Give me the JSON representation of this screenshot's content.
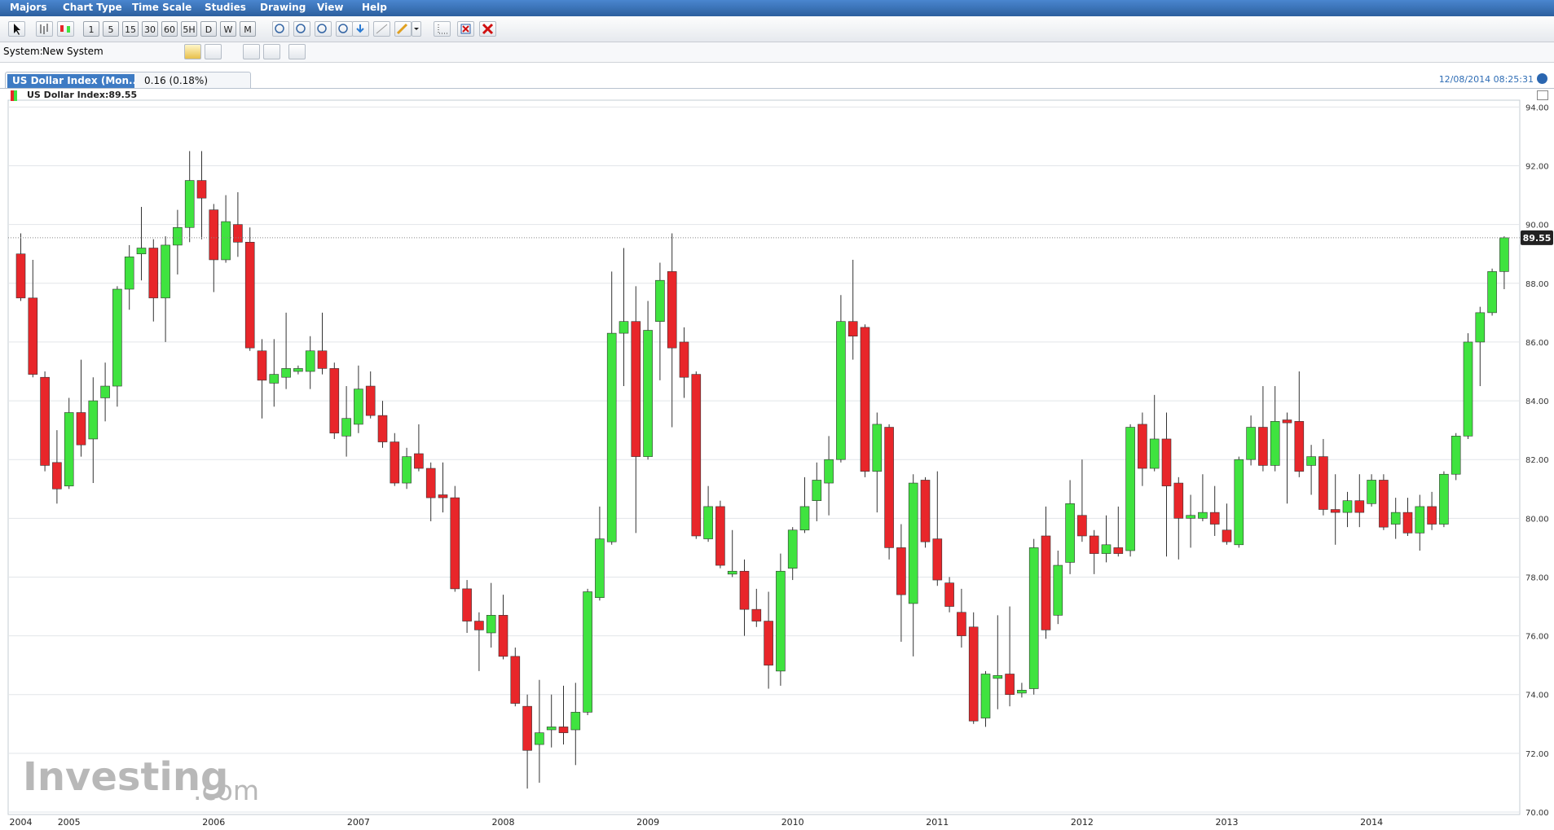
{
  "menu": [
    "Majors",
    "Chart Type",
    "Time Scale",
    "Studies",
    "Drawing",
    "View",
    "Help"
  ],
  "toolbar": {
    "intervals": [
      "1",
      "5",
      "15",
      "30",
      "60",
      "5H",
      "D",
      "W",
      "M"
    ]
  },
  "system": {
    "label": "System:",
    "value": "New System"
  },
  "tab": {
    "title": "US Dollar Index (Mon...",
    "change": "0.16 (0.18%)"
  },
  "timestamp": "12/08/2014 08:25:31",
  "legend": "US Dollar Index:89.55",
  "watermark": {
    "brand": "Investing",
    "suffix": ".com"
  },
  "chart_data": {
    "type": "candlestick",
    "categories": [
      "2004",
      null,
      null,
      null,
      "2005",
      null,
      null,
      null,
      null,
      null,
      null,
      null,
      null,
      null,
      null,
      null,
      "2006",
      null,
      null,
      null,
      null,
      null,
      null,
      null,
      null,
      null,
      null,
      null,
      "2007",
      null,
      null,
      null,
      null,
      null,
      null,
      null,
      null,
      null,
      null,
      null,
      "2008",
      null,
      null,
      null,
      null,
      null,
      null,
      null,
      null,
      null,
      null,
      null,
      "2009",
      null,
      null,
      null,
      null,
      null,
      null,
      null,
      null,
      null,
      null,
      null,
      "2010",
      null,
      null,
      null,
      null,
      null,
      null,
      null,
      null,
      null,
      null,
      null,
      "2011",
      null,
      null,
      null,
      null,
      null,
      null,
      null,
      null,
      null,
      null,
      null,
      "2012",
      null,
      null,
      null,
      null,
      null,
      null,
      null,
      null,
      null,
      null,
      null,
      "2013",
      null,
      null,
      null,
      null,
      null,
      null,
      null,
      null,
      null,
      null,
      null,
      "2014",
      null,
      null,
      null,
      null,
      null,
      null,
      null,
      null,
      null,
      null,
      null
    ],
    "series": [
      {
        "up_color": "#3fe33f",
        "down_color": "#e8262a",
        "open": [
          89.0,
          87.5,
          84.8,
          81.9,
          81.1,
          83.6,
          82.7,
          84.1,
          84.5,
          87.8,
          89.0,
          89.2,
          87.5,
          89.3,
          89.9,
          91.5,
          90.5,
          88.8,
          90.0,
          89.4,
          85.7,
          84.6,
          84.8,
          85.0,
          85.0,
          85.7,
          85.1,
          82.8,
          83.2,
          84.5,
          83.5,
          82.6,
          81.2,
          82.2,
          81.7,
          80.8,
          80.7,
          77.6,
          76.5,
          76.1,
          76.7,
          75.3,
          73.6,
          72.3,
          72.8,
          72.9,
          72.8,
          73.4,
          77.3,
          79.2,
          86.3,
          86.7,
          82.1,
          86.7,
          88.4,
          86.0,
          84.9,
          79.3,
          80.4,
          78.1,
          78.2,
          76.9,
          76.5,
          74.8,
          78.3,
          79.6,
          80.6,
          81.2,
          82.0,
          86.7,
          86.5,
          81.6,
          83.1,
          79.0,
          77.1,
          81.3,
          79.3,
          77.8,
          76.8,
          76.3,
          73.2,
          74.55,
          74.7,
          74.05,
          74.2,
          79.4,
          76.7,
          78.5,
          80.1,
          79.4,
          78.8,
          79.0,
          78.9,
          83.2,
          81.7,
          82.7,
          81.2,
          80.0,
          80.0,
          80.2,
          79.6,
          79.1,
          82.0,
          83.1,
          81.8,
          83.35,
          83.3,
          81.8,
          82.1,
          80.3,
          80.2,
          80.6,
          80.5,
          81.3,
          79.8,
          80.2,
          79.5,
          80.4,
          79.8,
          81.5,
          82.8,
          86.0,
          87.0,
          88.4
        ],
        "high": [
          89.7,
          88.8,
          85.0,
          83.0,
          84.1,
          85.4,
          84.8,
          85.3,
          87.9,
          89.3,
          90.6,
          89.5,
          89.6,
          90.5,
          92.5,
          92.5,
          90.7,
          91.0,
          91.1,
          89.9,
          86.1,
          86.1,
          87.0,
          85.2,
          86.2,
          87.0,
          85.3,
          84.5,
          85.2,
          85.0,
          84.0,
          82.9,
          82.4,
          83.2,
          81.9,
          81.9,
          81.1,
          77.9,
          76.8,
          77.8,
          77.4,
          75.6,
          74.0,
          74.5,
          74.0,
          74.3,
          74.4,
          77.6,
          80.4,
          88.4,
          89.2,
          87.9,
          87.4,
          88.7,
          89.7,
          86.5,
          85.0,
          81.1,
          80.6,
          79.6,
          78.6,
          77.6,
          77.5,
          78.8,
          79.7,
          81.4,
          81.9,
          82.8,
          87.6,
          88.8,
          86.6,
          83.6,
          83.2,
          79.8,
          81.5,
          81.4,
          81.6,
          78.0,
          77.6,
          76.8,
          74.8,
          76.7,
          77.0,
          74.4,
          79.3,
          80.4,
          78.9,
          81.3,
          82.0,
          79.6,
          80.1,
          80.4,
          83.2,
          83.6,
          84.2,
          83.6,
          81.4,
          80.8,
          81.5,
          81.1,
          80.5,
          82.1,
          83.5,
          84.5,
          84.5,
          83.6,
          85.0,
          82.5,
          82.7,
          81.5,
          80.9,
          81.5,
          81.5,
          81.5,
          80.7,
          80.7,
          80.8,
          80.9,
          81.6,
          82.9,
          86.3,
          87.2,
          88.5,
          89.6
        ],
        "low": [
          87.4,
          84.8,
          81.6,
          80.5,
          81.0,
          82.1,
          81.2,
          83.3,
          83.8,
          87.1,
          88.1,
          86.7,
          86.0,
          88.3,
          89.4,
          89.5,
          87.7,
          88.7,
          88.9,
          85.7,
          83.4,
          83.8,
          84.4,
          84.9,
          84.4,
          84.9,
          82.7,
          82.1,
          82.9,
          83.4,
          82.4,
          81.1,
          81.0,
          81.6,
          79.9,
          80.2,
          77.5,
          76.1,
          74.8,
          75.6,
          75.2,
          73.6,
          70.8,
          71.0,
          72.2,
          72.3,
          71.6,
          73.3,
          77.2,
          79.1,
          84.5,
          79.5,
          82.0,
          84.7,
          83.1,
          84.1,
          79.3,
          79.2,
          78.3,
          78.0,
          76.0,
          76.3,
          74.2,
          74.3,
          77.9,
          79.5,
          79.9,
          80.1,
          81.9,
          85.4,
          81.4,
          80.2,
          78.6,
          75.8,
          75.3,
          79.0,
          77.7,
          76.8,
          75.6,
          73.0,
          72.9,
          73.5,
          73.6,
          73.9,
          74.0,
          75.9,
          76.4,
          78.1,
          79.2,
          78.1,
          78.5,
          78.7,
          78.7,
          81.1,
          81.6,
          78.7,
          78.6,
          79.0,
          79.9,
          79.4,
          79.1,
          79.0,
          81.8,
          81.6,
          81.6,
          80.5,
          81.4,
          80.8,
          80.1,
          79.1,
          79.7,
          79.7,
          80.4,
          79.6,
          79.3,
          79.4,
          78.9,
          79.6,
          79.7,
          81.3,
          82.7,
          84.5,
          86.9,
          87.8
        ],
        "close": [
          87.5,
          84.9,
          81.8,
          81.0,
          83.6,
          82.5,
          84.0,
          84.5,
          87.8,
          88.9,
          89.2,
          87.5,
          89.3,
          89.9,
          91.5,
          90.9,
          88.8,
          90.1,
          89.4,
          85.8,
          84.7,
          84.9,
          85.1,
          85.1,
          85.7,
          85.1,
          82.9,
          83.4,
          84.4,
          83.5,
          82.6,
          81.2,
          82.1,
          81.7,
          80.7,
          80.7,
          77.6,
          76.5,
          76.2,
          76.7,
          75.3,
          73.7,
          72.1,
          72.7,
          72.9,
          72.7,
          73.4,
          77.5,
          79.3,
          86.3,
          86.7,
          82.1,
          86.4,
          88.1,
          85.8,
          84.8,
          79.4,
          80.4,
          78.4,
          78.2,
          76.9,
          76.5,
          75.0,
          78.2,
          79.6,
          80.4,
          81.3,
          82.0,
          86.7,
          86.2,
          81.6,
          83.2,
          79.0,
          77.4,
          81.2,
          79.2,
          77.9,
          77.0,
          76.0,
          73.1,
          74.7,
          74.65,
          74.0,
          74.15,
          79.0,
          76.2,
          78.4,
          80.5,
          79.4,
          78.8,
          79.1,
          78.8,
          83.1,
          81.7,
          82.7,
          81.1,
          80.0,
          80.1,
          80.2,
          79.8,
          79.2,
          82.0,
          83.1,
          81.8,
          83.3,
          83.25,
          81.6,
          82.1,
          80.3,
          80.2,
          80.6,
          80.2,
          81.3,
          79.7,
          80.2,
          79.5,
          80.4,
          79.8,
          81.5,
          82.8,
          86.0,
          87.0,
          88.4,
          89.55
        ]
      }
    ],
    "last_value": 89.55,
    "ylim": [
      70,
      94
    ],
    "yticks": [
      {
        "value": 70,
        "label": "70.00"
      },
      {
        "value": 72,
        "label": "72.00"
      },
      {
        "value": 74,
        "label": "74.00"
      },
      {
        "value": 76,
        "label": "76.00"
      },
      {
        "value": 78,
        "label": "78.00"
      },
      {
        "value": 80,
        "label": "80.00"
      },
      {
        "value": 82,
        "label": "82.00"
      },
      {
        "value": 84,
        "label": "84.00"
      },
      {
        "value": 86,
        "label": "86.00"
      },
      {
        "value": 88,
        "label": "88.00"
      },
      {
        "value": 90,
        "label": "90.00"
      },
      {
        "value": 92,
        "label": "92.00"
      },
      {
        "value": 94,
        "label": "94.00"
      }
    ],
    "grid": true
  }
}
